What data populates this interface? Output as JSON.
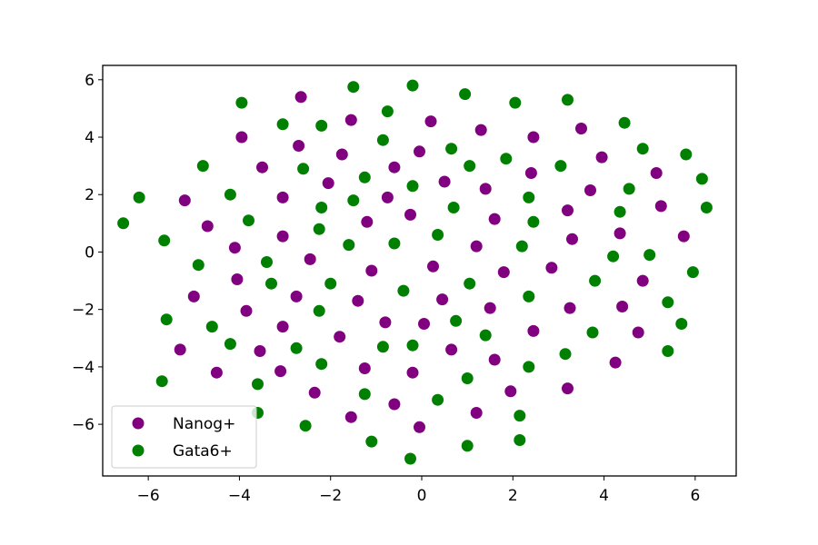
{
  "chart_data": {
    "type": "scatter",
    "title": "",
    "xlabel": "",
    "ylabel": "",
    "xlim": [
      -7.0,
      6.9
    ],
    "ylim": [
      -7.8,
      6.5
    ],
    "xticks": [
      -6,
      -4,
      -2,
      0,
      2,
      4,
      6
    ],
    "yticks": [
      -6,
      -4,
      -2,
      0,
      2,
      4,
      6
    ],
    "xtick_labels": [
      "−6",
      "−4",
      "−2",
      "0",
      "2",
      "4",
      "6"
    ],
    "ytick_labels": [
      "−6",
      "−4",
      "−2",
      "0",
      "2",
      "4",
      "6"
    ],
    "grid": false,
    "legend_position": "lower-left",
    "series": [
      {
        "name": "Nanog+",
        "color": "#800080",
        "points": [
          [
            -2.65,
            5.4
          ],
          [
            -1.55,
            4.6
          ],
          [
            0.2,
            4.55
          ],
          [
            1.3,
            4.25
          ],
          [
            2.45,
            4.0
          ],
          [
            3.5,
            4.3
          ],
          [
            -3.95,
            4.0
          ],
          [
            -2.7,
            3.7
          ],
          [
            -1.75,
            3.4
          ],
          [
            -0.6,
            2.95
          ],
          [
            -0.05,
            3.5
          ],
          [
            3.95,
            3.3
          ],
          [
            -3.5,
            2.95
          ],
          [
            -2.05,
            2.4
          ],
          [
            0.5,
            2.45
          ],
          [
            2.4,
            2.75
          ],
          [
            3.7,
            2.15
          ],
          [
            5.15,
            2.75
          ],
          [
            -5.2,
            1.8
          ],
          [
            -3.05,
            1.9
          ],
          [
            -0.75,
            1.9
          ],
          [
            1.4,
            2.2
          ],
          [
            3.2,
            1.45
          ],
          [
            5.25,
            1.6
          ],
          [
            -4.7,
            0.9
          ],
          [
            -1.2,
            1.05
          ],
          [
            -0.25,
            1.3
          ],
          [
            1.6,
            1.15
          ],
          [
            4.35,
            0.65
          ],
          [
            5.75,
            0.55
          ],
          [
            -4.1,
            0.15
          ],
          [
            -3.05,
            0.55
          ],
          [
            -2.45,
            -0.25
          ],
          [
            1.2,
            0.2
          ],
          [
            3.3,
            0.45
          ],
          [
            -4.05,
            -0.95
          ],
          [
            -1.1,
            -0.65
          ],
          [
            0.25,
            -0.5
          ],
          [
            1.8,
            -0.7
          ],
          [
            2.85,
            -0.55
          ],
          [
            4.85,
            -1.0
          ],
          [
            -5.0,
            -1.55
          ],
          [
            -2.75,
            -1.55
          ],
          [
            -1.4,
            -1.7
          ],
          [
            0.45,
            -1.65
          ],
          [
            1.5,
            -1.95
          ],
          [
            3.25,
            -1.95
          ],
          [
            -3.85,
            -2.05
          ],
          [
            -0.8,
            -2.45
          ],
          [
            0.05,
            -2.5
          ],
          [
            2.45,
            -2.75
          ],
          [
            4.4,
            -1.9
          ],
          [
            4.75,
            -2.8
          ],
          [
            -5.3,
            -3.4
          ],
          [
            -3.55,
            -3.45
          ],
          [
            -3.05,
            -2.6
          ],
          [
            -1.8,
            -2.95
          ],
          [
            0.65,
            -3.4
          ],
          [
            1.6,
            -3.75
          ],
          [
            -4.5,
            -4.2
          ],
          [
            -3.1,
            -4.15
          ],
          [
            -1.25,
            -4.05
          ],
          [
            -0.2,
            -4.2
          ],
          [
            4.25,
            -3.85
          ],
          [
            -2.35,
            -4.9
          ],
          [
            -0.6,
            -5.3
          ],
          [
            1.95,
            -4.85
          ],
          [
            3.2,
            -4.75
          ],
          [
            -1.55,
            -5.75
          ],
          [
            -0.05,
            -6.1
          ],
          [
            1.2,
            -5.6
          ]
        ]
      },
      {
        "name": "Gata6+",
        "color": "#008000",
        "points": [
          [
            -3.95,
            5.2
          ],
          [
            -1.5,
            5.75
          ],
          [
            -0.2,
            5.8
          ],
          [
            0.95,
            5.5
          ],
          [
            2.05,
            5.2
          ],
          [
            3.2,
            5.3
          ],
          [
            -3.05,
            4.45
          ],
          [
            -2.2,
            4.4
          ],
          [
            -0.75,
            4.9
          ],
          [
            4.45,
            4.5
          ],
          [
            -4.8,
            3.0
          ],
          [
            -2.6,
            2.9
          ],
          [
            -0.85,
            3.9
          ],
          [
            0.65,
            3.6
          ],
          [
            1.85,
            3.25
          ],
          [
            3.05,
            3.0
          ],
          [
            4.85,
            3.6
          ],
          [
            5.8,
            3.4
          ],
          [
            -6.2,
            1.9
          ],
          [
            -4.2,
            2.0
          ],
          [
            -2.2,
            1.55
          ],
          [
            -1.25,
            2.6
          ],
          [
            -0.2,
            2.3
          ],
          [
            1.05,
            3.0
          ],
          [
            2.35,
            1.9
          ],
          [
            4.55,
            2.2
          ],
          [
            6.15,
            2.55
          ],
          [
            -6.55,
            1.0
          ],
          [
            -3.8,
            1.1
          ],
          [
            -1.5,
            1.8
          ],
          [
            0.7,
            1.55
          ],
          [
            2.45,
            1.05
          ],
          [
            4.35,
            1.4
          ],
          [
            6.25,
            1.55
          ],
          [
            -5.65,
            0.4
          ],
          [
            -3.4,
            -0.35
          ],
          [
            -2.25,
            0.8
          ],
          [
            -1.6,
            0.25
          ],
          [
            -0.6,
            0.3
          ],
          [
            0.35,
            0.6
          ],
          [
            2.2,
            0.2
          ],
          [
            4.2,
            -0.15
          ],
          [
            5.0,
            -0.1
          ],
          [
            -4.9,
            -0.45
          ],
          [
            -3.3,
            -1.1
          ],
          [
            -2.0,
            -1.1
          ],
          [
            -0.4,
            -1.35
          ],
          [
            1.05,
            -1.1
          ],
          [
            2.35,
            -1.55
          ],
          [
            3.8,
            -1.0
          ],
          [
            5.95,
            -0.7
          ],
          [
            -5.6,
            -2.35
          ],
          [
            -4.6,
            -2.6
          ],
          [
            -2.25,
            -2.05
          ],
          [
            0.75,
            -2.4
          ],
          [
            1.4,
            -2.9
          ],
          [
            3.75,
            -2.8
          ],
          [
            5.4,
            -1.75
          ],
          [
            5.7,
            -2.5
          ],
          [
            -4.2,
            -3.2
          ],
          [
            -2.75,
            -3.35
          ],
          [
            -0.85,
            -3.3
          ],
          [
            -0.2,
            -3.25
          ],
          [
            3.15,
            -3.55
          ],
          [
            5.4,
            -3.45
          ],
          [
            -5.7,
            -4.5
          ],
          [
            -3.6,
            -4.6
          ],
          [
            -2.2,
            -3.9
          ],
          [
            1.0,
            -4.4
          ],
          [
            2.35,
            -4.0
          ],
          [
            -3.6,
            -5.6
          ],
          [
            -2.55,
            -6.05
          ],
          [
            -1.25,
            -4.95
          ],
          [
            0.35,
            -5.15
          ],
          [
            2.15,
            -5.7
          ],
          [
            -1.1,
            -6.6
          ],
          [
            -0.25,
            -7.2
          ],
          [
            1.0,
            -6.75
          ],
          [
            2.15,
            -6.55
          ]
        ]
      }
    ]
  }
}
